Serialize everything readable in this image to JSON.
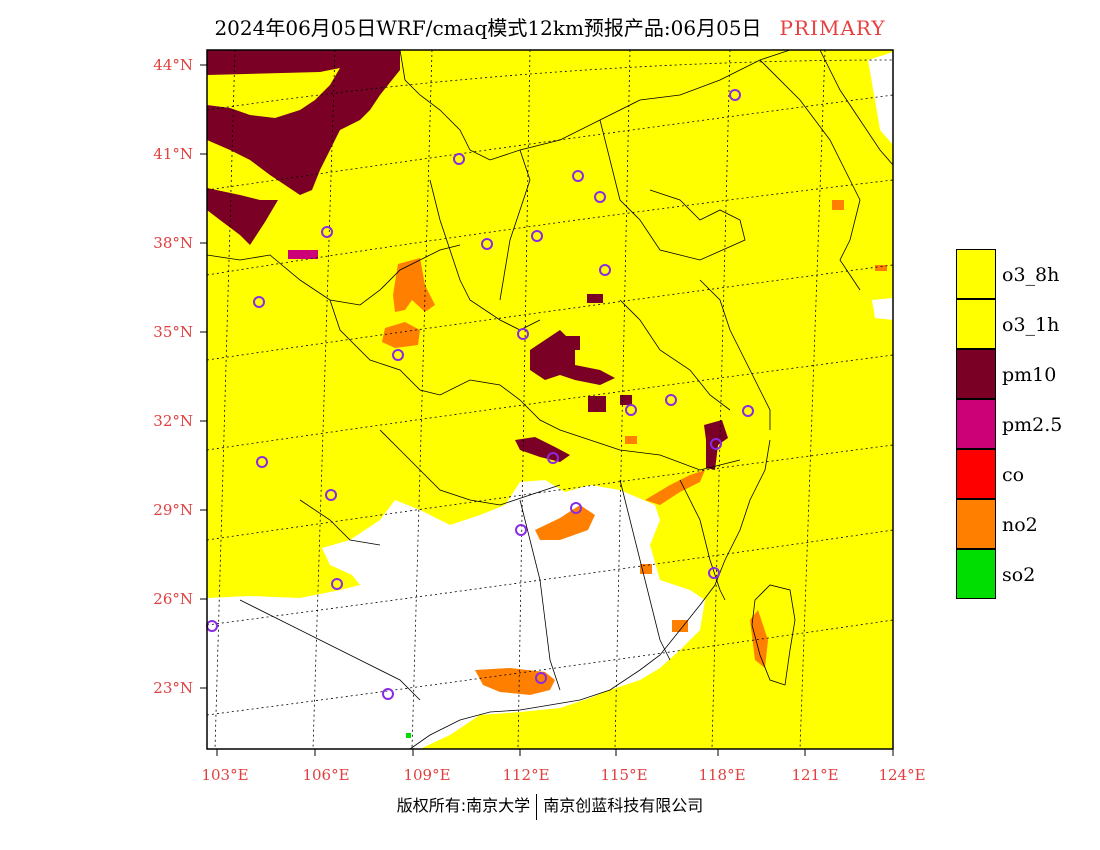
{
  "header": {
    "title": "2024年06月05日WRF/cmaq模式12km预报产品:06月05日",
    "tag": "PRIMARY"
  },
  "map": {
    "lat_labels": [
      "44°N",
      "41°N",
      "38°N",
      "35°N",
      "32°N",
      "29°N",
      "26°N",
      "23°N"
    ],
    "lon_labels": [
      "103°E",
      "106°E",
      "109°E",
      "112°E",
      "115°E",
      "118°E",
      "121°E",
      "124°E"
    ],
    "colors": {
      "o3_8h": "#ffff00",
      "o3_1h": "#ffff00",
      "pm10": "#7a0026",
      "pm2_5": "#cc0077",
      "co": "#ff0000",
      "no2": "#ff7f00",
      "so2": "#00dd00",
      "station_ring": "#8a2be2"
    }
  },
  "legend": [
    {
      "label": "o3_8h",
      "color": "#ffff00"
    },
    {
      "label": "o3_1h",
      "color": "#ffff00"
    },
    {
      "label": "pm10",
      "color": "#7a0026"
    },
    {
      "label": "pm2.5",
      "color": "#cc0077"
    },
    {
      "label": "co",
      "color": "#ff0000"
    },
    {
      "label": "no2",
      "color": "#ff7f00"
    },
    {
      "label": "so2",
      "color": "#00dd00"
    }
  ],
  "footer": {
    "left": "版权所有:南京大学",
    "right": "南京创蓝科技有限公司"
  }
}
